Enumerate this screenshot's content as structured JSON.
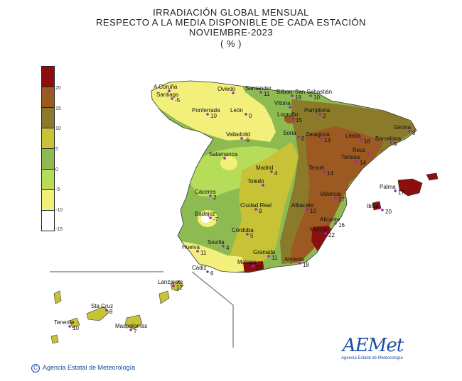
{
  "title": {
    "line1": "IRRADIACIÓN  GLOBAL MENSUAL",
    "line2": "RESPECTO  A LA MEDIA DISPONIBLE DE CADA ESTACIÓN",
    "line3": "NOVIEMBRE-2023",
    "line4": "( % )"
  },
  "legend": {
    "colors": [
      "#8b0f0f",
      "#9c5a22",
      "#8a7a2a",
      "#c7c236",
      "#8dbb52",
      "#b6dd5a",
      "#f2f07a",
      "#ffffff"
    ],
    "labels": [
      "20",
      "15",
      "10",
      "5",
      "0",
      "-5",
      "-10",
      "-15"
    ]
  },
  "stations": [
    {
      "name": "A Coruña",
      "value": ""
    },
    {
      "name": "Santiago",
      "value": "-5"
    },
    {
      "name": "Oviedo",
      "value": ""
    },
    {
      "name": "Santander",
      "value": "11"
    },
    {
      "name": "Bilbao",
      "value": "18"
    },
    {
      "name": "San Sebastián",
      "value": "10"
    },
    {
      "name": "Vitoria",
      "value": ""
    },
    {
      "name": "Pamplona",
      "value": "2"
    },
    {
      "name": "Logroño",
      "value": "15"
    },
    {
      "name": "Ponferrada",
      "value": "10"
    },
    {
      "name": "León",
      "value": "0"
    },
    {
      "name": "Valladolid",
      "value": "-5"
    },
    {
      "name": "Soria",
      "value": "0"
    },
    {
      "name": "Zaragoza",
      "value": "13"
    },
    {
      "name": "Lleida",
      "value": "16"
    },
    {
      "name": "Girona",
      "value": "8"
    },
    {
      "name": "Barcelona",
      "value": "9"
    },
    {
      "name": "Reus",
      "value": ""
    },
    {
      "name": "Tortosa",
      "value": "14"
    },
    {
      "name": "Salamanca",
      "value": ""
    },
    {
      "name": "Madrid",
      "value": "4"
    },
    {
      "name": "Toledo",
      "value": ""
    },
    {
      "name": "Teruel",
      "value": "14"
    },
    {
      "name": "Cáceres",
      "value": "2"
    },
    {
      "name": "Valencia",
      "value": "17"
    },
    {
      "name": "Palma",
      "value": "17"
    },
    {
      "name": "Ibiza",
      "value": "20"
    },
    {
      "name": "Badajoz",
      "value": "-7"
    },
    {
      "name": "Ciudad Real",
      "value": "9"
    },
    {
      "name": "Albacete",
      "value": "10"
    },
    {
      "name": "Alicante",
      "value": "16"
    },
    {
      "name": "Córdoba",
      "value": "5"
    },
    {
      "name": "Murcia",
      "value": "22"
    },
    {
      "name": "Sevilla",
      "value": "4"
    },
    {
      "name": "Huelva",
      "value": "11"
    },
    {
      "name": "Granada",
      "value": "11"
    },
    {
      "name": "Almería",
      "value": "18"
    },
    {
      "name": "Málaga",
      "value": "22"
    },
    {
      "name": "Cádiz",
      "value": "6"
    },
    {
      "name": "Lanzarote",
      "value": "12"
    },
    {
      "name": "Sta Cruz",
      "value": "9"
    },
    {
      "name": "Tenerife",
      "value": "10"
    },
    {
      "name": "Maspalomas",
      "value": "7"
    }
  ],
  "credit": {
    "symbol": "C",
    "text": "Agencia Estatal de Meteorología"
  },
  "logo": {
    "text": "AEMet",
    "sub": "Agencia Estatal de Meteorología"
  }
}
